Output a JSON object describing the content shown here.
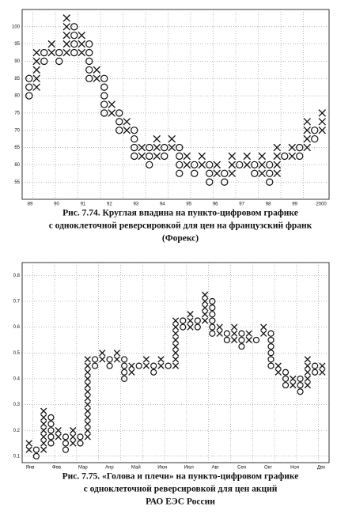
{
  "chart_data": [
    {
      "type": "point-and-figure",
      "caption": [
        "Рис. 7.74. Круглая впадина на пункто-цифровом графике",
        "с одноклеточной реверсировкой для цен на французский франк",
        "(Форекс)"
      ],
      "box": 2.5,
      "ylim": [
        50,
        105
      ],
      "yticks": [
        55,
        60,
        65,
        70,
        75,
        80,
        85,
        90,
        95,
        100
      ],
      "grid": true,
      "color": "#111",
      "x_labels": [
        "89",
        "90",
        "91",
        "92",
        "93",
        "94",
        "95",
        "96",
        "97",
        "98",
        "99",
        "2000"
      ],
      "columns": [
        {
          "kind": "O",
          "low": 80,
          "high": 85
        },
        {
          "kind": "X",
          "low": 82.5,
          "high": 92.5
        },
        {
          "kind": "O",
          "low": 90,
          "high": 92.5
        },
        {
          "kind": "X",
          "low": 92.5,
          "high": 95
        },
        {
          "kind": "O",
          "low": 90,
          "high": 92.5
        },
        {
          "kind": "X",
          "low": 92.5,
          "high": 102.5
        },
        {
          "kind": "O",
          "low": 92.5,
          "high": 100
        },
        {
          "kind": "X",
          "low": 92.5,
          "high": 97.5
        },
        {
          "kind": "O",
          "low": 85,
          "high": 95
        },
        {
          "kind": "X",
          "low": 85,
          "high": 87.5
        },
        {
          "kind": "O",
          "low": 75,
          "high": 85
        },
        {
          "kind": "X",
          "low": 75,
          "high": 77.5
        },
        {
          "kind": "O",
          "low": 70,
          "high": 75
        },
        {
          "kind": "X",
          "low": 70,
          "high": 72.5
        },
        {
          "kind": "O",
          "low": 62.5,
          "high": 70
        },
        {
          "kind": "X",
          "low": 62.5,
          "high": 65
        },
        {
          "kind": "O",
          "low": 60,
          "high": 65
        },
        {
          "kind": "X",
          "low": 62.5,
          "high": 67.5
        },
        {
          "kind": "O",
          "low": 62.5,
          "high": 65
        },
        {
          "kind": "X",
          "low": 65,
          "high": 67.5
        },
        {
          "kind": "O",
          "low": 57.5,
          "high": 65
        },
        {
          "kind": "X",
          "low": 60,
          "high": 62.5
        },
        {
          "kind": "O",
          "low": 57.5,
          "high": 60
        },
        {
          "kind": "X",
          "low": 60,
          "high": 62.5
        },
        {
          "kind": "O",
          "low": 55,
          "high": 60
        },
        {
          "kind": "X",
          "low": 57.5,
          "high": 60
        },
        {
          "kind": "O",
          "low": 55,
          "high": 57.5
        },
        {
          "kind": "X",
          "low": 57.5,
          "high": 62.5
        },
        {
          "kind": "O",
          "low": 60,
          "high": 60
        },
        {
          "kind": "X",
          "low": 60,
          "high": 62.5
        },
        {
          "kind": "O",
          "low": 57.5,
          "high": 60
        },
        {
          "kind": "X",
          "low": 57.5,
          "high": 62.5
        },
        {
          "kind": "O",
          "low": 55,
          "high": 60
        },
        {
          "kind": "X",
          "low": 57.5,
          "high": 65
        },
        {
          "kind": "O",
          "low": 62.5,
          "high": 62.5
        },
        {
          "kind": "X",
          "low": 62.5,
          "high": 65
        },
        {
          "kind": "O",
          "low": 62.5,
          "high": 65
        },
        {
          "kind": "X",
          "low": 65,
          "high": 72.5
        },
        {
          "kind": "O",
          "low": 67.5,
          "high": 70
        },
        {
          "kind": "X",
          "low": 70,
          "high": 75
        }
      ]
    },
    {
      "type": "point-and-figure",
      "caption": [
        "Рис. 7.75. «Голова и плечи» на пункто-цифровом графике",
        "с одноклеточной реверсировкой для цен акций",
        "РАО ЕЭС России"
      ],
      "box": 0.025,
      "ylim": [
        0.075,
        0.85
      ],
      "yticks": [
        0.1,
        0.2,
        0.3,
        0.4,
        0.5,
        0.6,
        0.7,
        0.8
      ],
      "grid": true,
      "color": "#111",
      "x_labels": [
        "Янв",
        "Фев",
        "Мар",
        "Апр",
        "Май",
        "Июн",
        "Июл",
        "Авг",
        "Сен",
        "Окт",
        "Ноя",
        "Дек"
      ],
      "columns": [
        {
          "kind": "X",
          "low": 0.125,
          "high": 0.15
        },
        {
          "kind": "O",
          "low": 0.1,
          "high": 0.125
        },
        {
          "kind": "X",
          "low": 0.125,
          "high": 0.275
        },
        {
          "kind": "O",
          "low": 0.15,
          "high": 0.25
        },
        {
          "kind": "X",
          "low": 0.175,
          "high": 0.2
        },
        {
          "kind": "O",
          "low": 0.125,
          "high": 0.175
        },
        {
          "kind": "X",
          "low": 0.15,
          "high": 0.2
        },
        {
          "kind": "O",
          "low": 0.15,
          "high": 0.175
        },
        {
          "kind": "X",
          "low": 0.175,
          "high": 0.475
        },
        {
          "kind": "O",
          "low": 0.45,
          "high": 0.475
        },
        {
          "kind": "X",
          "low": 0.475,
          "high": 0.5
        },
        {
          "kind": "O",
          "low": 0.45,
          "high": 0.475
        },
        {
          "kind": "X",
          "low": 0.475,
          "high": 0.5
        },
        {
          "kind": "O",
          "low": 0.4,
          "high": 0.475
        },
        {
          "kind": "X",
          "low": 0.425,
          "high": 0.45
        },
        {
          "kind": "O",
          "low": 0.45,
          "high": 0.45
        },
        {
          "kind": "X",
          "low": 0.45,
          "high": 0.475
        },
        {
          "kind": "O",
          "low": 0.425,
          "high": 0.45
        },
        {
          "kind": "X",
          "low": 0.45,
          "high": 0.475
        },
        {
          "kind": "O",
          "low": 0.45,
          "high": 0.45
        },
        {
          "kind": "X",
          "low": 0.45,
          "high": 0.625
        },
        {
          "kind": "O",
          "low": 0.6,
          "high": 0.625
        },
        {
          "kind": "X",
          "low": 0.6,
          "high": 0.65
        },
        {
          "kind": "O",
          "low": 0.6,
          "high": 0.625
        },
        {
          "kind": "X",
          "low": 0.625,
          "high": 0.725
        },
        {
          "kind": "O",
          "low": 0.575,
          "high": 0.7
        },
        {
          "kind": "X",
          "low": 0.575,
          "high": 0.6
        },
        {
          "kind": "O",
          "low": 0.55,
          "high": 0.575
        },
        {
          "kind": "X",
          "low": 0.55,
          "high": 0.6
        },
        {
          "kind": "O",
          "low": 0.525,
          "high": 0.575
        },
        {
          "kind": "X",
          "low": 0.55,
          "high": 0.575
        },
        {
          "kind": "O",
          "low": 0.55,
          "high": 0.55
        },
        {
          "kind": "X",
          "low": 0.575,
          "high": 0.6
        },
        {
          "kind": "O",
          "low": 0.45,
          "high": 0.575
        },
        {
          "kind": "X",
          "low": 0.425,
          "high": 0.45
        },
        {
          "kind": "O",
          "low": 0.375,
          "high": 0.425
        },
        {
          "kind": "X",
          "low": 0.375,
          "high": 0.4
        },
        {
          "kind": "O",
          "low": 0.35,
          "high": 0.4
        },
        {
          "kind": "X",
          "low": 0.375,
          "high": 0.475
        },
        {
          "kind": "O",
          "low": 0.425,
          "high": 0.45
        },
        {
          "kind": "X",
          "low": 0.425,
          "high": 0.45
        }
      ]
    }
  ]
}
